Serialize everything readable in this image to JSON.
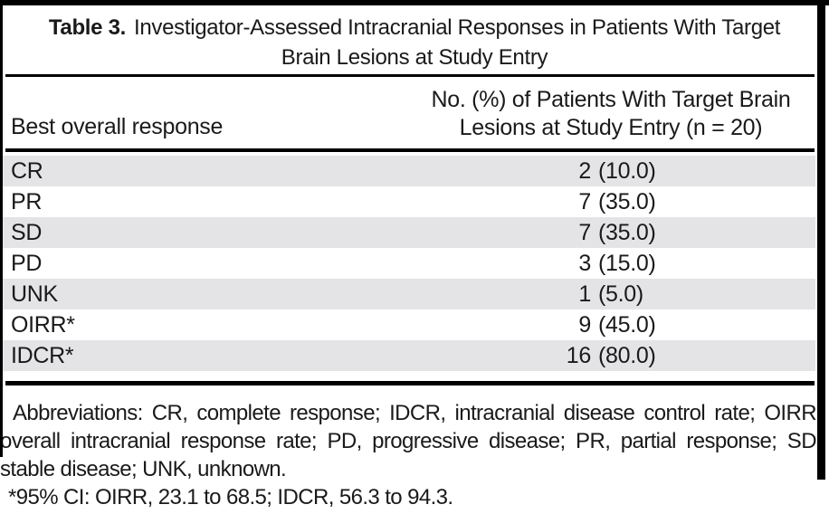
{
  "page": {
    "background_color": "#ffffff",
    "text_color": "#1a1a1a",
    "stripe_color": "#e4e4e7",
    "rule_color": "#000000"
  },
  "table": {
    "caption": {
      "label": "Table 3.",
      "line1": "Investigator-Assessed Intracranial Responses in Patients With Target",
      "line2": "Brain Lesions at Study Entry"
    },
    "header": {
      "col1": "Best overall response",
      "col2_line1": "No. (%) of Patients With Target Brain",
      "col2_line2": "Lesions at Study Entry (n = 20)"
    },
    "rows": [
      {
        "label": "CR",
        "n": "2",
        "pct": "(10.0)"
      },
      {
        "label": "PR",
        "n": "7",
        "pct": "(35.0)"
      },
      {
        "label": "SD",
        "n": "7",
        "pct": "(35.0)"
      },
      {
        "label": "PD",
        "n": "3",
        "pct": "(15.0)"
      },
      {
        "label": "UNK",
        "n": "1",
        "pct": "(5.0)"
      },
      {
        "label": "OIRR*",
        "n": "9",
        "pct": "(45.0)"
      },
      {
        "label": "IDCR*",
        "n": "16",
        "pct": "(80.0)"
      }
    ],
    "footnotes": {
      "abbreviations": "Abbreviations: CR, complete response; IDCR, intracranial disease control rate; OIRR, overall intracranial response rate; PD, progressive disease; PR, partial response; SD, stable disease; UNK, unknown.",
      "ci_note": "*95% CI: OIRR, 23.1 to 68.5; IDCR, 56.3 to 94.3."
    }
  }
}
